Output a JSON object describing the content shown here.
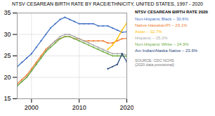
{
  "chart_data": {
    "type": "line",
    "title": "NTSV CESAREAN BIRTH RATE BY RACE/ETHNICITY, UNITED STATES, 1997 - 2020",
    "x": [
      1997,
      1998,
      1999,
      2000,
      2001,
      2002,
      2003,
      2004,
      2005,
      2006,
      2007,
      2008,
      2009,
      2010,
      2011,
      2012,
      2013,
      2014,
      2015,
      2016,
      2017,
      2018,
      2019,
      2020
    ],
    "series": [
      {
        "name": "Non-Hispanic Black – 30.6%",
        "color": "#4472C4",
        "values": [
          22.5,
          23.5,
          24.5,
          25.5,
          27.0,
          28.5,
          30.0,
          31.5,
          32.5,
          33.5,
          34.0,
          33.5,
          33.0,
          32.5,
          32.5,
          32.5,
          32.5,
          32.0,
          32.0,
          32.0,
          31.5,
          31.0,
          30.5,
          30.6
        ]
      },
      {
        "name": "Native Hawaiian/PI – 29.1%",
        "color": "#ED7D31",
        "values": [
          18.5,
          19.5,
          20.5,
          22.0,
          23.5,
          25.0,
          26.5,
          27.5,
          28.5,
          29.0,
          29.5,
          29.5,
          29.0,
          29.0,
          28.5,
          28.5,
          28.5,
          28.5,
          28.5,
          28.0,
          28.0,
          28.5,
          29.0,
          29.1
        ]
      },
      {
        "name": "Asian – 32.7%",
        "color": "#FFC000",
        "values": [
          null,
          null,
          null,
          null,
          null,
          null,
          null,
          null,
          null,
          null,
          null,
          null,
          null,
          null,
          null,
          null,
          null,
          null,
          null,
          26.5,
          27.5,
          29.0,
          31.0,
          32.7
        ]
      },
      {
        "name": "Hispanic – 25.2%",
        "color": "#A9A9A9",
        "values": [
          18.0,
          19.0,
          20.0,
          21.5,
          23.0,
          24.5,
          26.0,
          27.5,
          28.5,
          29.5,
          30.0,
          30.0,
          29.5,
          29.0,
          28.5,
          28.0,
          27.5,
          27.0,
          26.5,
          26.0,
          25.5,
          25.5,
          25.5,
          25.2
        ]
      },
      {
        "name": "Non-Hispanic White – 24.9%",
        "color": "#70AD47",
        "values": [
          18.0,
          19.0,
          20.0,
          21.5,
          23.0,
          24.5,
          26.0,
          27.0,
          28.0,
          29.0,
          29.5,
          29.5,
          29.0,
          28.5,
          28.0,
          27.5,
          27.0,
          26.5,
          26.0,
          25.5,
          25.0,
          25.0,
          25.0,
          24.9
        ]
      },
      {
        "name": "Am Indian/Alaska Native – 23.6%",
        "color": "#264478",
        "values": [
          null,
          null,
          null,
          null,
          null,
          null,
          null,
          null,
          null,
          null,
          null,
          null,
          null,
          null,
          null,
          null,
          null,
          null,
          null,
          22.0,
          22.5,
          23.0,
          25.5,
          23.6
        ]
      }
    ],
    "xlim": [
      1997,
      2020
    ],
    "xticks": [
      2000,
      2010,
      2020
    ],
    "ylim": [
      15,
      35
    ],
    "yticks": [
      15,
      20,
      25,
      30,
      35
    ],
    "grid": true,
    "legend": "right",
    "legend_title": "NTSV CESAREAN BIRTH RATE 2020",
    "annotations": [
      "SOURCE: CDC NCHS\n(2020 data provisional)"
    ]
  }
}
